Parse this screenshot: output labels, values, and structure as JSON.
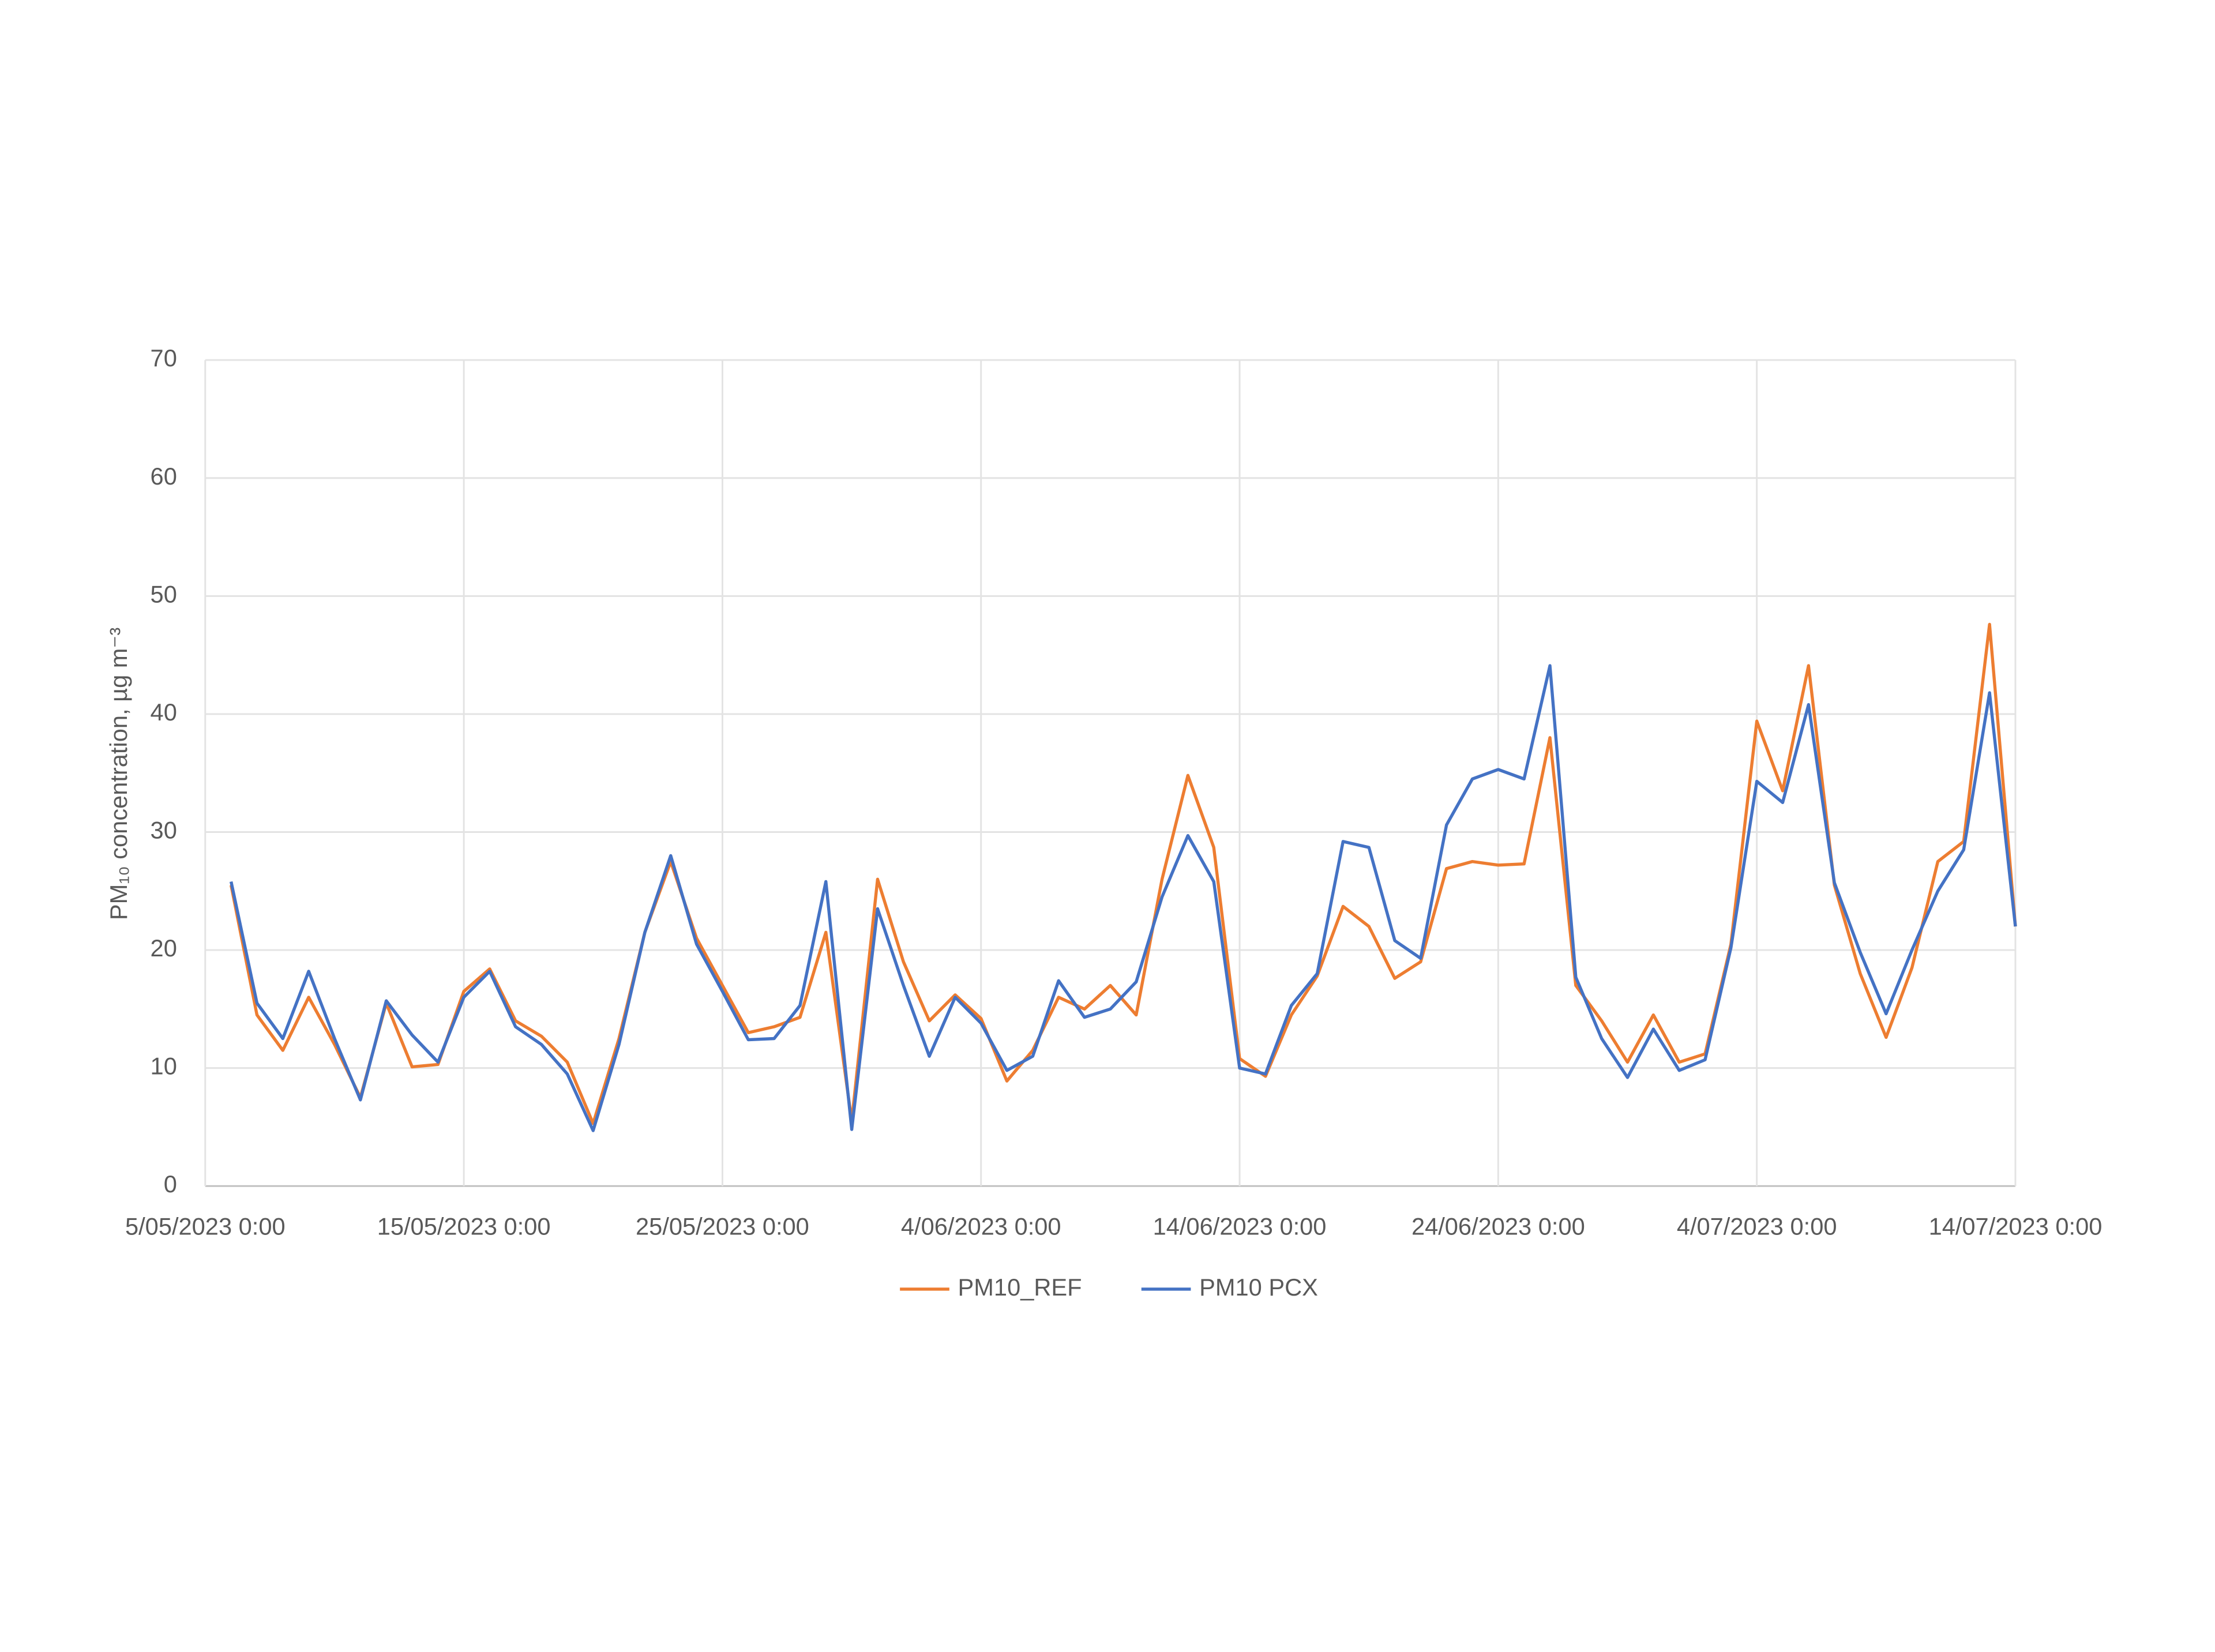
{
  "chart_data": {
    "type": "line",
    "ylabel": "PM₁₀ concentration, µg m⁻³",
    "x": [
      "6/05/2023 0:00",
      "7/05/2023 0:00",
      "8/05/2023 0:00",
      "9/05/2023 0:00",
      "10/05/2023 0:00",
      "11/05/2023 0:00",
      "12/05/2023 0:00",
      "13/05/2023 0:00",
      "14/05/2023 0:00",
      "15/05/2023 0:00",
      "16/05/2023 0:00",
      "17/05/2023 0:00",
      "18/05/2023 0:00",
      "19/05/2023 0:00",
      "20/05/2023 0:00",
      "21/05/2023 0:00",
      "22/05/2023 0:00",
      "23/05/2023 0:00",
      "24/05/2023 0:00",
      "25/05/2023 0:00",
      "26/05/2023 0:00",
      "27/05/2023 0:00",
      "28/05/2023 0:00",
      "29/05/2023 0:00",
      "30/05/2023 0:00",
      "31/05/2023 0:00",
      "1/06/2023 0:00",
      "2/06/2023 0:00",
      "3/06/2023 0:00",
      "4/06/2023 0:00",
      "5/06/2023 0:00",
      "6/06/2023 0:00",
      "7/06/2023 0:00",
      "8/06/2023 0:00",
      "9/06/2023 0:00",
      "10/06/2023 0:00",
      "11/06/2023 0:00",
      "12/06/2023 0:00",
      "13/06/2023 0:00",
      "14/06/2023 0:00",
      "15/06/2023 0:00",
      "16/06/2023 0:00",
      "17/06/2023 0:00",
      "18/06/2023 0:00",
      "19/06/2023 0:00",
      "20/06/2023 0:00",
      "21/06/2023 0:00",
      "22/06/2023 0:00",
      "23/06/2023 0:00",
      "24/06/2023 0:00",
      "25/06/2023 0:00",
      "26/06/2023 0:00",
      "27/06/2023 0:00",
      "28/06/2023 0:00",
      "29/06/2023 0:00",
      "30/06/2023 0:00",
      "1/07/2023 0:00",
      "2/07/2023 0:00",
      "3/07/2023 0:00",
      "4/07/2023 0:00",
      "5/07/2023 0:00",
      "6/07/2023 0:00",
      "7/07/2023 0:00",
      "8/07/2023 0:00",
      "9/07/2023 0:00",
      "10/07/2023 0:00",
      "11/07/2023 0:00",
      "12/07/2023 0:00",
      "13/07/2023 0:00",
      "14/07/2023 0:00"
    ],
    "series": [
      {
        "name": "PM10_REF",
        "color": "#ed7d31",
        "values": [
          25.5,
          14.5,
          11.5,
          16,
          12,
          7.5,
          15.5,
          10.1,
          10.3,
          16.5,
          18.4,
          14,
          12.7,
          10.5,
          5.3,
          12.5,
          21.5,
          27.5,
          21,
          17,
          13,
          13.5,
          14.3,
          21.5,
          5.5,
          26,
          19,
          14,
          16.2,
          14.2,
          8.9,
          11.5,
          16,
          15,
          17,
          14.5,
          26,
          34.8,
          28.7,
          10.8,
          9.3,
          14.5,
          17.8,
          23.7,
          22,
          17.6,
          19,
          26.9,
          27.5,
          27.2,
          27.3,
          38,
          17,
          14,
          10.5,
          14.5,
          10.5,
          11.2,
          20.5,
          39.4,
          33.5,
          44.1,
          25.5,
          18,
          12.6,
          18.5,
          27.5,
          29.2,
          47.6,
          22
        ]
      },
      {
        "name": "PM10 PCX",
        "color": "#4472c4",
        "values": [
          25.8,
          15.5,
          12.5,
          18.2,
          12.5,
          7.3,
          15.7,
          12.8,
          10.5,
          16,
          18.2,
          13.5,
          12,
          9.5,
          4.7,
          12,
          21.5,
          28,
          20.5,
          16.5,
          12.4,
          12.5,
          15.3,
          25.8,
          4.8,
          23.5,
          17,
          11,
          16,
          13.8,
          9.8,
          11,
          17.4,
          14.3,
          15,
          17.3,
          24.5,
          29.7,
          25.8,
          10,
          9.5,
          15.3,
          18,
          29.2,
          28.7,
          20.8,
          19.3,
          30.6,
          34.5,
          35.3,
          34.5,
          44.1,
          17.7,
          12.5,
          9.2,
          13.3,
          9.8,
          10.7,
          20.2,
          34.3,
          32.5,
          40.8,
          25.7,
          19.8,
          14.6,
          20,
          25,
          28.5,
          41.8,
          22
        ]
      }
    ],
    "xlim": [
      "5/05/2023 0:00",
      "14/07/2023 0:00"
    ],
    "xticks": [
      "5/05/2023 0:00",
      "15/05/2023 0:00",
      "25/05/2023 0:00",
      "4/06/2023 0:00",
      "14/06/2023 0:00",
      "24/06/2023 0:00",
      "4/07/2023 0:00",
      "14/07/2023 0:00"
    ],
    "ylim": [
      0,
      70
    ],
    "yticks": [
      0,
      10,
      20,
      30,
      40,
      50,
      60,
      70
    ],
    "grid": true,
    "legend": "bottom"
  }
}
